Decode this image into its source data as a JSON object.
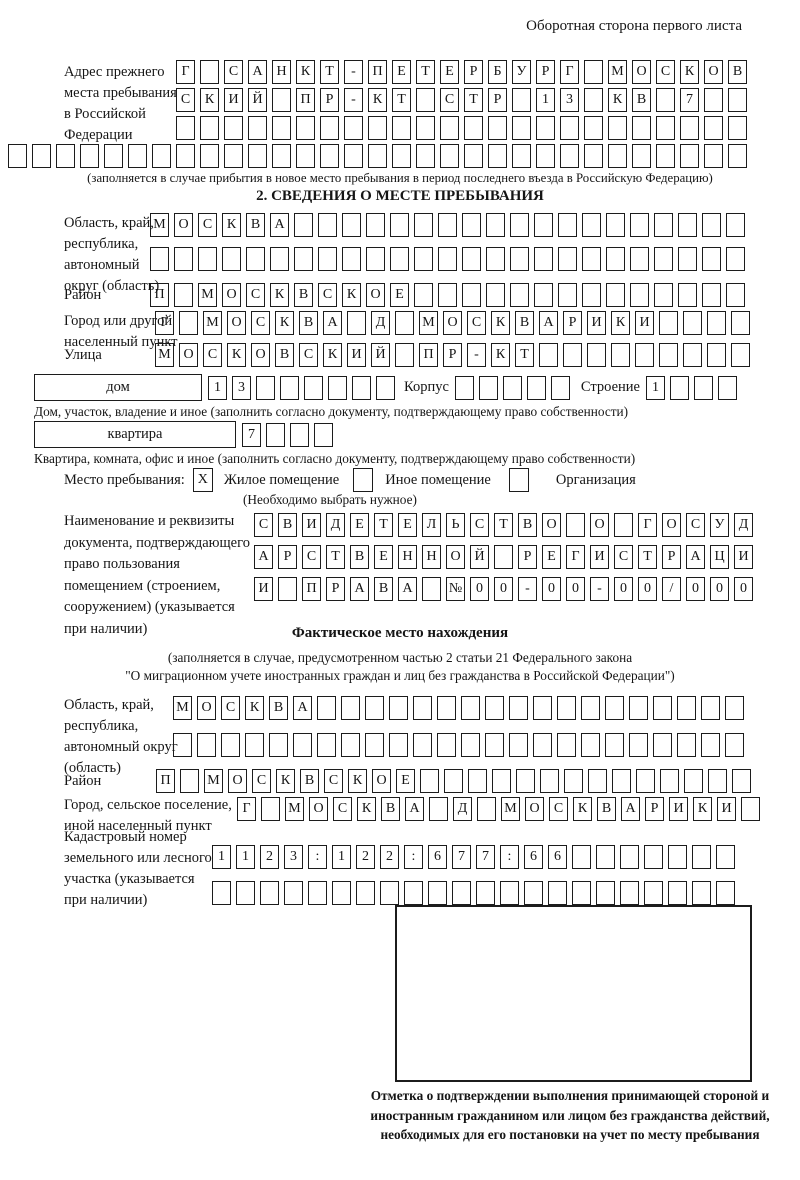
{
  "page": {
    "title_right": "Оборотная сторона первого листа"
  },
  "prev_address": {
    "label_lines": [
      "Адрес прежнего",
      "места пребывания",
      "в Российской",
      "Федерации"
    ],
    "rows": [
      {
        "cells": 24,
        "value": "Г САНКТ-ПЕТЕРБУРГ МОСКОВ"
      },
      {
        "cells": 24,
        "value": "СКИЙ ПР-КТ СТР 13 КВ 7"
      },
      {
        "cells": 24,
        "value": ""
      },
      {
        "cells": 31,
        "value": ""
      }
    ],
    "note": "(заполняется в случае прибытия в новое место пребывания в период последнего въезда в Российскую Федерацию)"
  },
  "section2": {
    "title": "2. СВЕДЕНИЯ О МЕСТЕ ПРЕБЫВАНИЯ",
    "oblast": {
      "label_lines": [
        "Область, край,",
        "республика,",
        "автономный",
        "округ (область)"
      ],
      "rows": [
        {
          "cells": 25,
          "value": "МОСКВА"
        },
        {
          "cells": 25,
          "value": ""
        }
      ]
    },
    "raion": {
      "label": "Район",
      "row": {
        "cells": 25,
        "value": "П МОСКВСКОЕ"
      }
    },
    "gorod": {
      "label_lines": [
        "Город или другой",
        "населенный пункт"
      ],
      "row": {
        "cells": 25,
        "value": "Г МОСКВА Д МОСКВАРИКИ"
      }
    },
    "ulitsa": {
      "label": "Улица",
      "row": {
        "cells": 25,
        "value": "МОСКОВСКИЙ ПР-КТ"
      }
    },
    "dom": {
      "box_label": "дом",
      "dom_cells": {
        "cells": 8,
        "value": "13"
      },
      "korpus_label": "Корпус",
      "korpus_cells": {
        "cells": 5,
        "value": ""
      },
      "stroenie_label": "Строение",
      "stroenie_cells": {
        "cells": 4,
        "value": "1"
      },
      "note": "Дом, участок, владение и иное (заполнить согласно документу, подтверждающему право собственности)"
    },
    "kvartira": {
      "box_label": "квартира",
      "cells": {
        "cells": 4,
        "value": "7"
      },
      "note": "Квартира, комната, офис и иное (заполнить согласно документу, подтверждающему право собственности)"
    },
    "mesto": {
      "label": "Место пребывания:",
      "options": [
        {
          "mark": "X",
          "label": "Жилое помещение"
        },
        {
          "mark": "",
          "label": "Иное помещение"
        },
        {
          "mark": "",
          "label": "Организация"
        }
      ],
      "note": "(Необходимо выбрать нужное)"
    },
    "document": {
      "label_lines": [
        "Наименование и реквизиты",
        "документа, подтверждающего",
        "право пользования",
        "помещением (строением,",
        "сооружением) (указывается",
        "при наличии)"
      ],
      "rows": [
        {
          "cells": 21,
          "value": "СВИДЕТЕЛЬСТВО О ГОСУД"
        },
        {
          "cells": 21,
          "value": "АРСТВЕННОЙ РЕГИСТРАЦИ"
        },
        {
          "cells": 21,
          "value": "И ПРАВА №00-00-00/000"
        }
      ]
    }
  },
  "factual": {
    "title": "Фактическое место нахождения",
    "note_line1": "(заполняется в случае, предусмотренном частью 2 статьи 21 Федерального закона",
    "note_line2": "\"О миграционном учете иностранных граждан и лиц без гражданства в Российской Федерации\")",
    "oblast": {
      "label_lines": [
        "Область, край,",
        "республика,",
        "автономный округ",
        "(область)"
      ],
      "rows": [
        {
          "cells": 24,
          "value": "МОСКВА"
        },
        {
          "cells": 24,
          "value": ""
        }
      ]
    },
    "raion": {
      "label": "Район",
      "row": {
        "cells": 25,
        "value": "П МОСКВСКОЕ"
      }
    },
    "gorod": {
      "label_lines": [
        "Город, сельское поселение,",
        "иной населенный пункт"
      ],
      "row": {
        "cells": 22,
        "value": "Г МОСКВА Д МОСКВАРИКИ"
      }
    },
    "kadastr": {
      "label_lines": [
        "Кадастровый номер",
        "земельного или лесного",
        "участка (указывается",
        "при наличии)"
      ],
      "rows": [
        {
          "cells": 22,
          "value": "1123:122:677:66"
        },
        {
          "cells": 22,
          "value": ""
        }
      ]
    },
    "stamp_caption": "Отметка о подтверждении выполнения принимающей стороной и иностранным гражданином или лицом без гражданства действий, необходимых для его постановки на учет по месту пребывания"
  }
}
